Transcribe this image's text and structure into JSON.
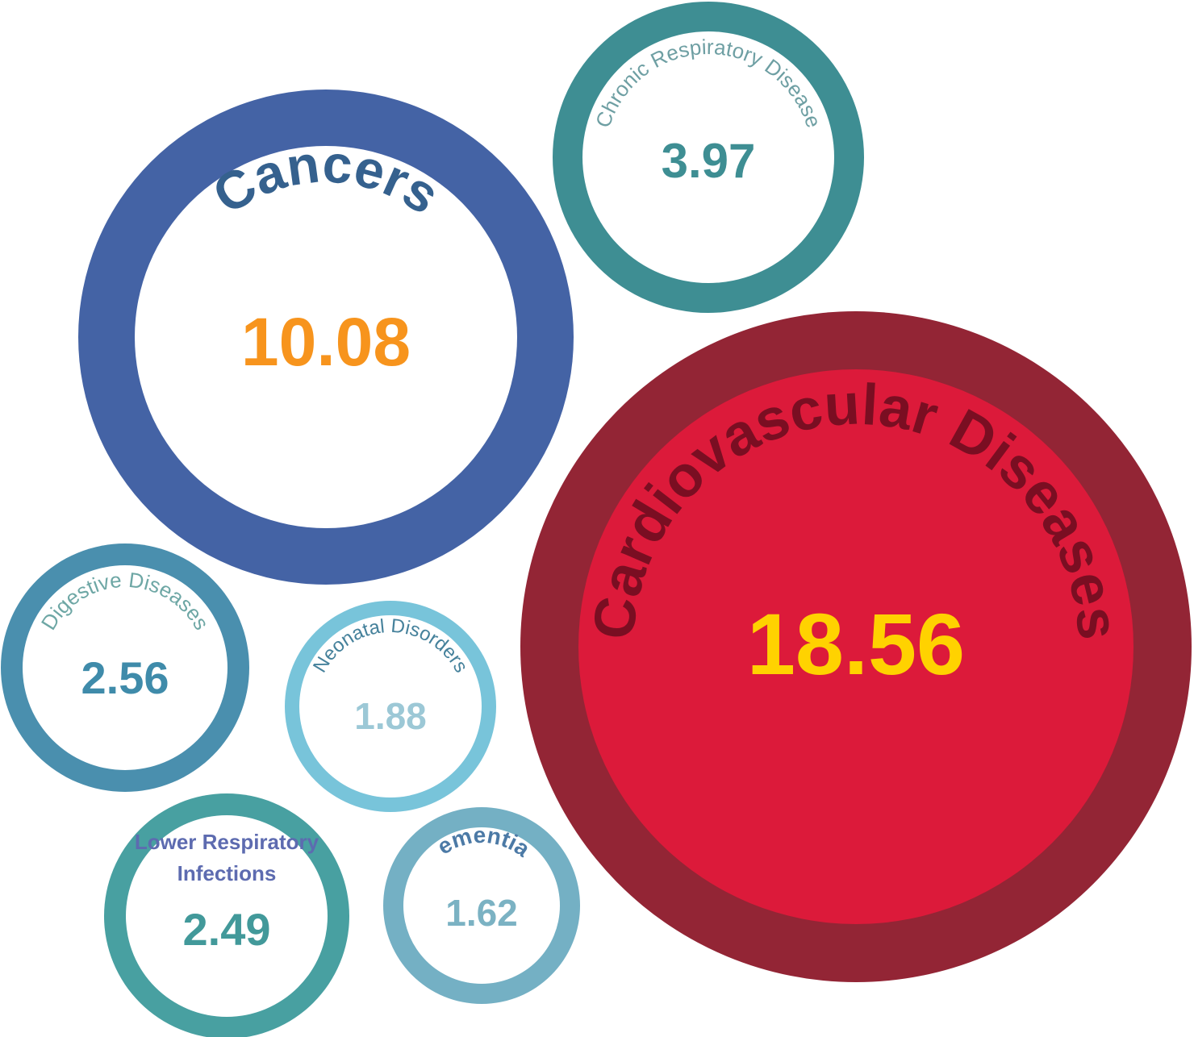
{
  "chart_data": {
    "type": "bubble",
    "title": "",
    "bubbles": [
      {
        "label": "Cardiovascular Diseases",
        "value": 18.56,
        "ring_color": "#932535",
        "fill_color": "#DC1A3A",
        "label_color": "#7A0E22",
        "value_color": "#FFD200"
      },
      {
        "label": "Cancers",
        "value": 10.08,
        "ring_color": "#4463A5",
        "fill_color": "#FFFFFF",
        "label_color": "#35618E",
        "value_color": "#F7941D"
      },
      {
        "label": "Chronic Respiratory Disease",
        "value": 3.97,
        "ring_color": "#3E8E93",
        "fill_color": "#FFFFFF",
        "label_color": "#6E9FA3",
        "value_color": "#3E8E93"
      },
      {
        "label": "Digestive Diseases",
        "value": 2.56,
        "ring_color": "#4A8FAE",
        "fill_color": "#FFFFFF",
        "label_color": "#6EA7A5",
        "value_color": "#3F8BAA"
      },
      {
        "label": "Lower Respiratory Infections",
        "value": 2.49,
        "ring_color": "#48A0A1",
        "fill_color": "#FFFFFF",
        "label_color": "#5D6BB0",
        "value_color": "#42999A"
      },
      {
        "label": "Neonatal Disorders",
        "value": 1.88,
        "ring_color": "#78C4DA",
        "fill_color": "#FFFFFF",
        "label_color": "#45819B",
        "value_color": "#9CC8D6"
      },
      {
        "label": "Dementias",
        "value": 1.62,
        "ring_color": "#74B0C4",
        "fill_color": "#FFFFFF",
        "label_color": "#4C7AA6",
        "value_color": "#7BB2C3"
      }
    ]
  }
}
